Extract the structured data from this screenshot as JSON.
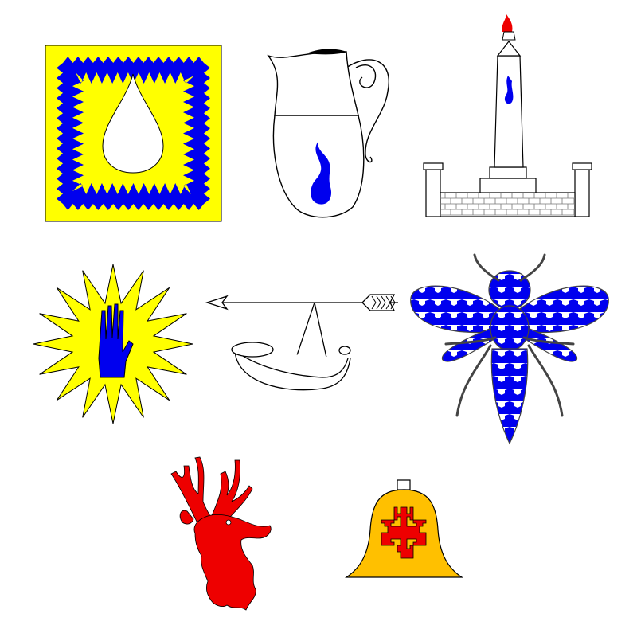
{
  "page": {
    "background": "#ffffff"
  },
  "colors": {
    "or": "#ffff00",
    "azure": "#0000ee",
    "argent": "#ffffff",
    "gules": "#ee0000",
    "bell_gold": "#ffc000",
    "outline": "#000000",
    "bee_line": "#444444"
  },
  "charges": [
    {
      "name": "flames-square-icon",
      "tinctures": [
        "or",
        "azure",
        "argent"
      ]
    },
    {
      "name": "water-jug-icon",
      "tinctures": [
        "argent",
        "azure"
      ]
    },
    {
      "name": "obelisk-icon",
      "tinctures": [
        "argent",
        "azure",
        "gules"
      ]
    },
    {
      "name": "sun-gauntlet-icon",
      "tinctures": [
        "or",
        "azure"
      ]
    },
    {
      "name": "horn-and-arrow-icon",
      "tinctures": [
        "argent"
      ]
    },
    {
      "name": "vair-bee-icon",
      "tinctures": [
        "argent",
        "azure"
      ]
    },
    {
      "name": "stag-head-icon",
      "tinctures": [
        "gules"
      ]
    },
    {
      "name": "bell-cross-icon",
      "tinctures": [
        "bell_gold",
        "gules"
      ]
    }
  ]
}
